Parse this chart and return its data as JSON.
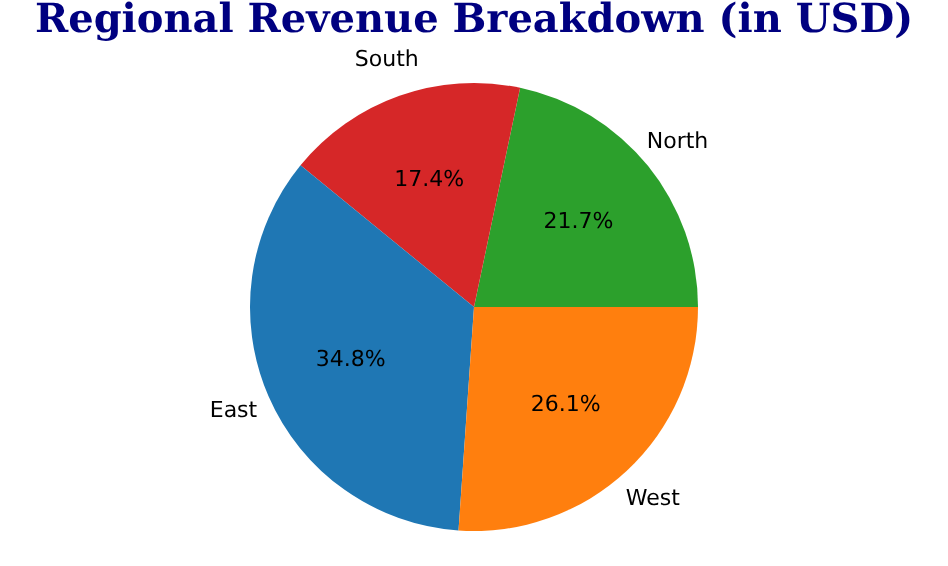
{
  "chart_data": {
    "type": "pie",
    "title": "Regional Revenue Breakdown (in USD)",
    "categories": [
      "North",
      "South",
      "East",
      "West"
    ],
    "values": [
      21.7,
      17.4,
      34.8,
      26.1
    ],
    "value_labels": [
      "21.7%",
      "17.4%",
      "34.8%",
      "26.1%"
    ],
    "colors": [
      "#2ca02c",
      "#d62728",
      "#1f77b4",
      "#ff7f0e"
    ],
    "legend": false
  }
}
